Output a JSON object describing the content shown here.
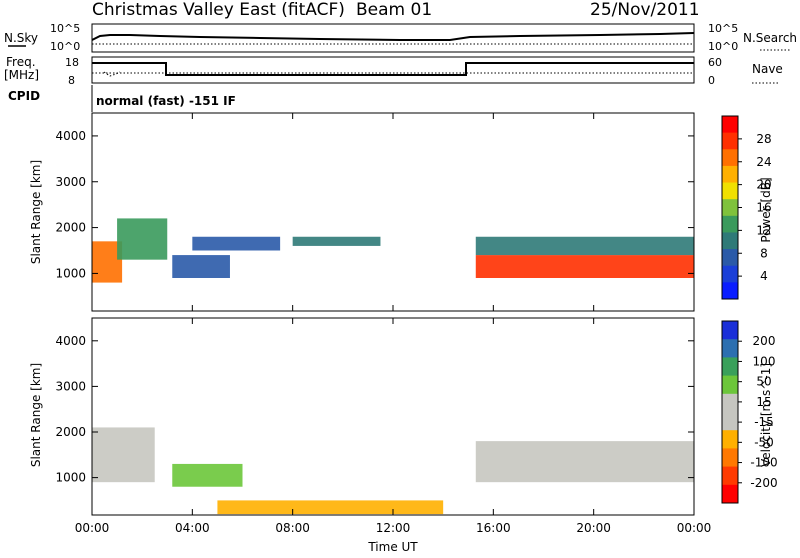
{
  "header": {
    "station": "Christmas Valley East (fitACF)",
    "beam": "Beam 01",
    "date": "25/Nov/2011"
  },
  "top_panels": {
    "nsky": {
      "label": "N.Sky",
      "ticks": [
        "10^5",
        "10^0"
      ]
    },
    "nsearch": {
      "label": "N.Search",
      "ticks": [
        "10^5",
        "10^0"
      ]
    },
    "freq": {
      "label": "Freq.",
      "unit": "[MHz]",
      "ticks": [
        "18",
        "8"
      ]
    },
    "nave": {
      "label": "Nave",
      "ticks": [
        "60",
        "0"
      ]
    },
    "cpid": {
      "label": "CPID",
      "value": "normal (fast) -151 IF"
    }
  },
  "colors": {
    "power_scale": [
      "#0a1dff",
      "#1a3fd8",
      "#2a5aa8",
      "#2f7a78",
      "#3a9a5c",
      "#7fc23c",
      "#f0e000",
      "#ffb000",
      "#ff7000",
      "#ff3000",
      "#ff0000"
    ],
    "velocity_scale": [
      "#1a2fd8",
      "#2c6fb0",
      "#39a05a",
      "#6cc63a",
      "#c6c6c0",
      "#c6c6c0",
      "#ffb000",
      "#ff7800",
      "#ff3a00",
      "#ff0000"
    ]
  },
  "chart_data": [
    {
      "type": "heatmap",
      "name": "power",
      "ylabel": "Slant Range [km]",
      "y_ticks": [
        "4000",
        "3000",
        "2000",
        "1000"
      ],
      "ylim": [
        180,
        4500
      ],
      "x_ticks": [
        "00:00",
        "04:00",
        "08:00",
        "12:00",
        "16:00",
        "20:00",
        "00:00"
      ],
      "colorbar": {
        "label": "Power [dB]",
        "ticks": [
          "28",
          "24",
          "20",
          "16",
          "12",
          "8",
          "4"
        ]
      },
      "regions": [
        {
          "t0": 0.0,
          "t1": 1.2,
          "r0": 800,
          "r1": 1700,
          "value": 24
        },
        {
          "t0": 1.0,
          "t1": 3.0,
          "r0": 1300,
          "r1": 2200,
          "value": 14
        },
        {
          "t0": 3.2,
          "t1": 5.5,
          "r0": 900,
          "r1": 1400,
          "value": 8
        },
        {
          "t0": 4.0,
          "t1": 7.5,
          "r0": 1500,
          "r1": 1800,
          "value": 10
        },
        {
          "t0": 8.0,
          "t1": 11.5,
          "r0": 1600,
          "r1": 1800,
          "value": 12
        },
        {
          "t0": 15.3,
          "t1": 24.0,
          "r0": 900,
          "r1": 1400,
          "value": 28
        },
        {
          "t0": 15.3,
          "t1": 24.0,
          "r0": 1400,
          "r1": 1800,
          "value": 12
        }
      ]
    },
    {
      "type": "heatmap",
      "name": "velocity",
      "ylabel": "Slant Range [km]",
      "y_ticks": [
        "4000",
        "3000",
        "2000",
        "1000"
      ],
      "ylim": [
        180,
        4500
      ],
      "x_ticks": [
        "00:00",
        "04:00",
        "08:00",
        "12:00",
        "16:00",
        "20:00",
        "00:00"
      ],
      "xlabel": "Time UT",
      "colorbar": {
        "label": "Velocity [m s^-1]",
        "ticks": [
          "200",
          "100",
          "50",
          "15",
          "-15",
          "-50",
          "-100",
          "-200"
        ]
      },
      "regions": [
        {
          "t0": 0.0,
          "t1": 2.5,
          "r0": 900,
          "r1": 2100,
          "value": 0
        },
        {
          "t0": 3.2,
          "t1": 6.0,
          "r0": 800,
          "r1": 1300,
          "value": 60
        },
        {
          "t0": 15.3,
          "t1": 24.0,
          "r0": 900,
          "r1": 1800,
          "value": 0
        },
        {
          "t0": 5.0,
          "t1": 14.0,
          "r0": 200,
          "r1": 500,
          "value": -50
        }
      ]
    }
  ]
}
